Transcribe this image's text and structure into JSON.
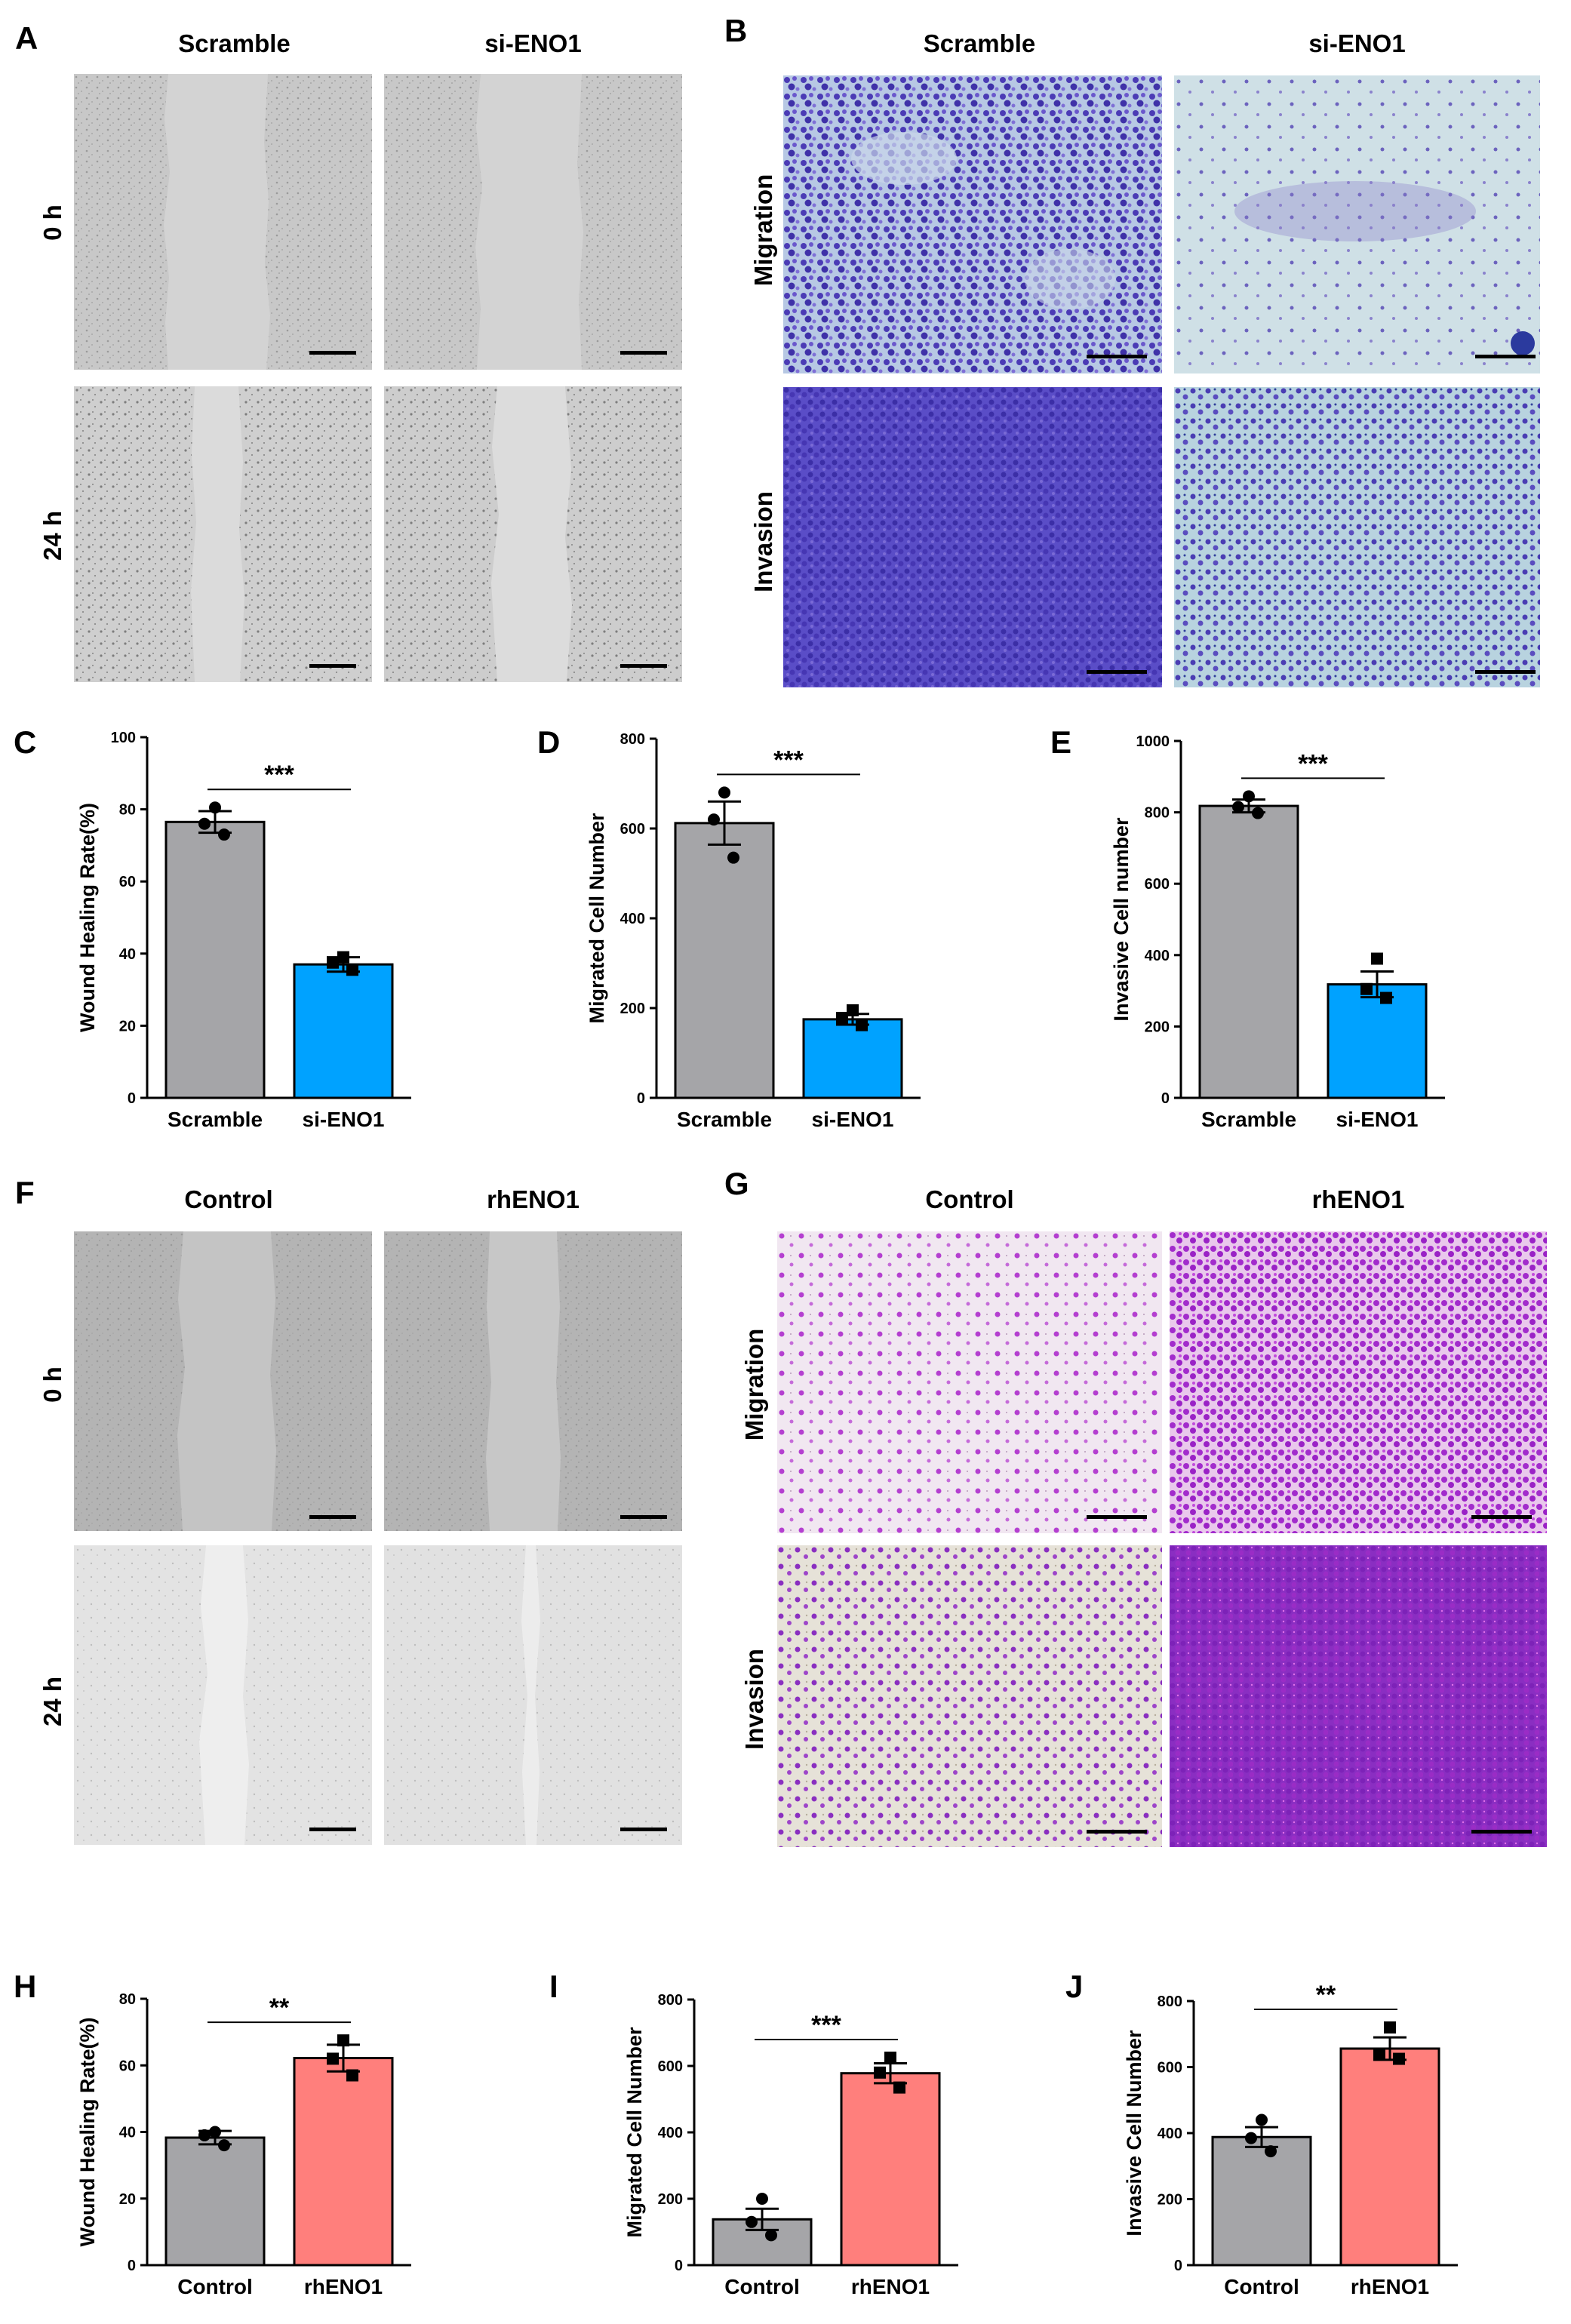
{
  "panels": {
    "A": {
      "label": "A",
      "columns": [
        "Scramble",
        "si-ENO1"
      ],
      "rows": [
        "0 h",
        "24 h"
      ]
    },
    "B": {
      "label": "B",
      "columns": [
        "Scramble",
        "si-ENO1"
      ],
      "rows": [
        "Migration",
        "Invasion"
      ]
    },
    "F": {
      "label": "F",
      "columns": [
        "Control",
        "rhENO1"
      ],
      "rows": [
        "0 h",
        "24 h"
      ]
    },
    "G": {
      "label": "G",
      "columns": [
        "Control",
        "rhENO1"
      ],
      "rows": [
        "Migration",
        "Invasion"
      ]
    }
  },
  "colors": {
    "control_bar": "#a5a5a8",
    "knockdown_bar": "#00a2ff",
    "overexpress_bar": "#ff7f7c",
    "scratch_tissue": "#c9c9c9",
    "crystal_violet_B": "#5b46c2",
    "crystal_violet_G": "#a626c9"
  },
  "chart_data": [
    {
      "id": "C",
      "label": "C",
      "type": "bar",
      "ylabel": "Wound Healing Rate(%)",
      "categories": [
        "Scramble",
        "si-ENO1"
      ],
      "values": [
        76.5,
        37
      ],
      "sem": [
        3,
        2
      ],
      "points": [
        [
          80.5,
          76,
          73
        ],
        [
          39,
          37.5,
          35.5
        ]
      ],
      "markers": [
        "circle",
        "square"
      ],
      "ylim": [
        0,
        100
      ],
      "yticks": [
        0,
        20,
        40,
        60,
        80,
        100
      ],
      "significance": "***",
      "colors": [
        "#a5a5a8",
        "#00a2ff"
      ]
    },
    {
      "id": "D",
      "label": "D",
      "type": "bar",
      "ylabel": "Migrated Cell Number",
      "categories": [
        "Scramble",
        "si-ENO1"
      ],
      "values": [
        612,
        175
      ],
      "sem": [
        48,
        12
      ],
      "points": [
        [
          680,
          620,
          535
        ],
        [
          195,
          178,
          162
        ]
      ],
      "markers": [
        "circle",
        "square"
      ],
      "ylim": [
        0,
        800
      ],
      "yticks": [
        0,
        200,
        400,
        600,
        800
      ],
      "significance": "***",
      "colors": [
        "#a5a5a8",
        "#00a2ff"
      ]
    },
    {
      "id": "E",
      "label": "E",
      "type": "bar",
      "ylabel": "Invasive Cell number",
      "categories": [
        "Scramble",
        "si-ENO1"
      ],
      "values": [
        818,
        318
      ],
      "sem": [
        18,
        36
      ],
      "points": [
        [
          845,
          815,
          798
        ],
        [
          390,
          305,
          280
        ]
      ],
      "markers": [
        "circle",
        "square"
      ],
      "ylim": [
        0,
        1000
      ],
      "yticks": [
        0,
        200,
        400,
        600,
        800,
        1000
      ],
      "significance": "***",
      "colors": [
        "#a5a5a8",
        "#00a2ff"
      ]
    },
    {
      "id": "H",
      "label": "H",
      "type": "bar",
      "ylabel": "Wound Healing Rate(%)",
      "categories": [
        "Control",
        "rhENO1"
      ],
      "values": [
        38.3,
        62.2
      ],
      "sem": [
        2,
        4
      ],
      "points": [
        [
          40,
          39,
          36
        ],
        [
          67.5,
          62,
          57
        ]
      ],
      "markers": [
        "circle",
        "square"
      ],
      "ylim": [
        0,
        80
      ],
      "yticks": [
        0,
        20,
        40,
        60,
        80
      ],
      "significance": "**",
      "colors": [
        "#a5a5a8",
        "#ff7f7c"
      ]
    },
    {
      "id": "I",
      "label": "I",
      "type": "bar",
      "ylabel": "Migrated Cell Number",
      "categories": [
        "Control",
        "rhENO1"
      ],
      "values": [
        138,
        578
      ],
      "sem": [
        32,
        30
      ],
      "points": [
        [
          200,
          130,
          90
        ],
        [
          625,
          580,
          535
        ]
      ],
      "markers": [
        "circle",
        "square"
      ],
      "ylim": [
        0,
        800
      ],
      "yticks": [
        0,
        200,
        400,
        600,
        800
      ],
      "significance": "***",
      "colors": [
        "#a5a5a8",
        "#ff7f7c"
      ]
    },
    {
      "id": "J",
      "label": "J",
      "type": "bar",
      "ylabel": "Invasive Cell Number",
      "categories": [
        "Control",
        "rhENO1"
      ],
      "values": [
        388,
        656
      ],
      "sem": [
        30,
        34
      ],
      "points": [
        [
          440,
          385,
          345
        ],
        [
          720,
          640,
          625
        ]
      ],
      "markers": [
        "circle",
        "square"
      ],
      "ylim": [
        0,
        800
      ],
      "yticks": [
        0,
        200,
        400,
        600,
        800
      ],
      "significance": "**",
      "colors": [
        "#a5a5a8",
        "#ff7f7c"
      ]
    }
  ]
}
